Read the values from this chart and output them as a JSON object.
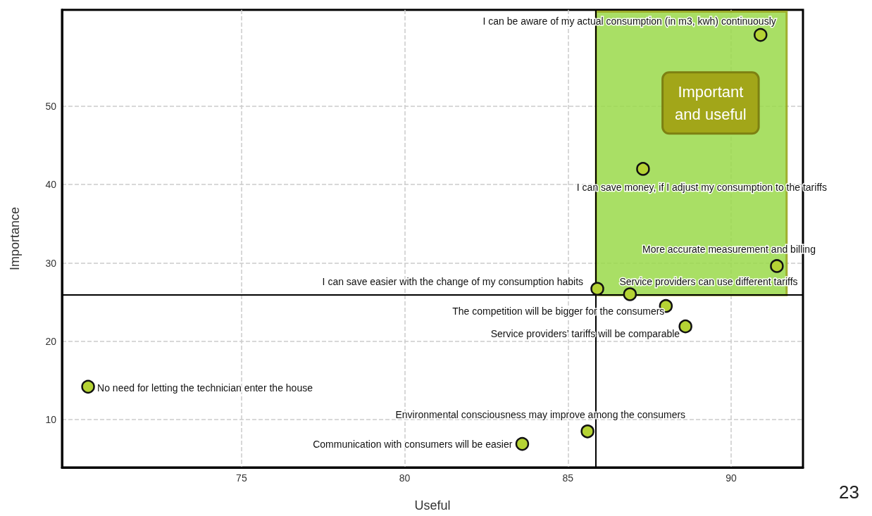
{
  "chart_data": {
    "type": "scatter",
    "xlabel": "Useful",
    "ylabel": "Importance",
    "xlim": [
      69.5,
      92.2
    ],
    "xticks": [
      75,
      80,
      85,
      90
    ],
    "ylim": [
      3.9,
      62.3
    ],
    "yticks": [
      10,
      20,
      30,
      40,
      50
    ],
    "grid": true,
    "marker": "circle",
    "series": [
      {
        "color": "#b5d334",
        "x": [
          90.9,
          87.3,
          91.4,
          85.9,
          86.9,
          88.0,
          88.6,
          70.3,
          85.6,
          83.6
        ],
        "values": [
          59.1,
          42.0,
          29.6,
          26.7,
          26.0,
          24.5,
          21.9,
          14.2,
          8.5,
          6.9
        ]
      }
    ],
    "ref_lines": [
      {
        "axis": "x",
        "value": 85.86,
        "color": "#000000"
      },
      {
        "axis": "y",
        "value": 25.9,
        "color": "#000000"
      }
    ],
    "bands": [
      {
        "axis": "x",
        "from": 85.86,
        "to": 91.7,
        "label": "Important\nand useful",
        "color": "#9ad94a"
      }
    ],
    "annotations": [
      {
        "text": "I can be aware of my actual consumption (in m3, kwh) continuously",
        "x": 90.9,
        "y": 59.1
      },
      {
        "text": "I can save money, if I adjust my consumption to the tariffs",
        "x": 87.3,
        "y": 42.0
      },
      {
        "text": "More accurate measurement and billing",
        "x": 91.4,
        "y": 29.6
      },
      {
        "text": "I can save easier with the change of my consumption habits",
        "x": 85.9,
        "y": 26.7
      },
      {
        "text": "Service providers can use different tariffs",
        "x": 86.9,
        "y": 26.0
      },
      {
        "text": "The competition will be bigger for the consumers",
        "x": 88.0,
        "y": 24.5
      },
      {
        "text": "Service providers’ tariffs will be comparable",
        "x": 88.6,
        "y": 21.9
      },
      {
        "text": "No need for letting the technician enter the house",
        "x": 70.3,
        "y": 14.2
      },
      {
        "text": "Environmental consciousness may improve among the consumers",
        "x": 85.6,
        "y": 8.5
      },
      {
        "text": "Communication with consumers will be easier",
        "x": 83.6,
        "y": 6.9
      },
      "23"
    ]
  }
}
